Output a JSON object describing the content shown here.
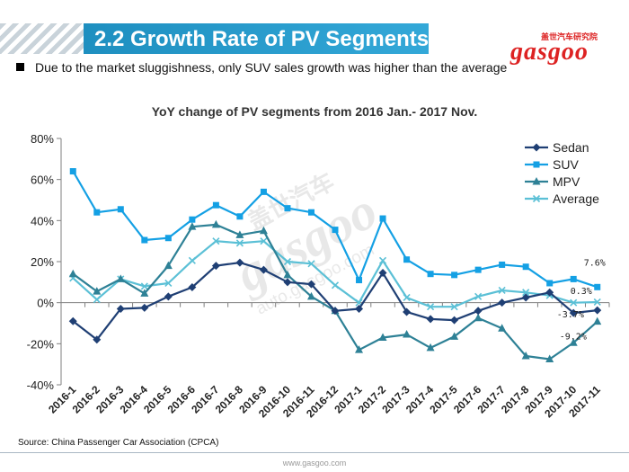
{
  "header": {
    "title": "2.2 Growth Rate of PV Segments",
    "logo_small": "盖世汽车研究院",
    "logo_text": "gasgoo"
  },
  "bullet_text": "Due to the market sluggishness, only SUV sales growth was higher than the average",
  "source": "Source: China Passenger Car Association (CPCA)",
  "footer_url": "www.gasgoo.com",
  "watermark": {
    "text": "盖世汽车",
    "brand": "gasgoo",
    "url": "auto.gasgoo.com"
  },
  "chart_data": {
    "type": "line",
    "title": "YoY change of PV segments from 2016 Jan.- 2017 Nov.",
    "xlabel": "",
    "ylabel": "",
    "ylim": [
      -40,
      80
    ],
    "yticks": [
      "80%",
      "60%",
      "40%",
      "20%",
      "0%",
      "-20%",
      "-40%"
    ],
    "ytick_values": [
      80,
      60,
      40,
      20,
      0,
      -20,
      -40
    ],
    "grid": false,
    "legend_position": "top-right",
    "categories": [
      "2016-1",
      "2016-2",
      "2016-3",
      "2016-4",
      "2016-5",
      "2016-6",
      "2016-7",
      "2016-8",
      "2016-9",
      "2016-10",
      "2016-11",
      "2016-12",
      "2017-1",
      "2017-2",
      "2017-3",
      "2017-4",
      "2017-5",
      "2017-6",
      "2017-7",
      "2017-8",
      "2017-9",
      "2017-10",
      "2017-11"
    ],
    "series": [
      {
        "name": "Sedan",
        "color": "#1f3f74",
        "marker": "diamond",
        "values": [
          -9,
          -18,
          -3,
          -2.5,
          3,
          7.5,
          18,
          19.5,
          16,
          10,
          9,
          -4,
          -3,
          14.5,
          -4.5,
          -8,
          -8.5,
          -4,
          0,
          2.5,
          5,
          -5,
          -3.7
        ]
      },
      {
        "name": "SUV",
        "color": "#14a0e4",
        "marker": "square",
        "values": [
          64,
          44,
          45.5,
          30.5,
          31.5,
          40.5,
          47.5,
          42,
          54,
          46,
          44,
          35.5,
          11,
          41,
          21,
          14,
          13.5,
          16,
          18.5,
          17.5,
          9.5,
          11.5,
          7.6
        ]
      },
      {
        "name": "MPV",
        "color": "#2e8196",
        "marker": "triangle",
        "values": [
          14,
          5.5,
          11.5,
          4.5,
          18,
          37,
          38,
          33,
          35,
          13.5,
          3,
          -4,
          -23,
          -17,
          -15.5,
          -22,
          -16.5,
          -7.5,
          -12.5,
          -26,
          -27.5,
          -19.5,
          -9.2
        ]
      },
      {
        "name": "Average",
        "color": "#5bc0d6",
        "marker": "x",
        "values": [
          12,
          1.5,
          11.5,
          8,
          9.5,
          20.5,
          30,
          29,
          30,
          20,
          19,
          8.5,
          0,
          20.5,
          2.5,
          -2,
          -2,
          3,
          6,
          5,
          3.5,
          0,
          0.3
        ]
      }
    ],
    "data_labels": [
      {
        "series": "SUV",
        "text": "7.6%"
      },
      {
        "series": "Average",
        "text": "0.3%"
      },
      {
        "series": "Sedan",
        "text": "-3.7%"
      },
      {
        "series": "MPV",
        "text": "-9.2%"
      }
    ]
  }
}
